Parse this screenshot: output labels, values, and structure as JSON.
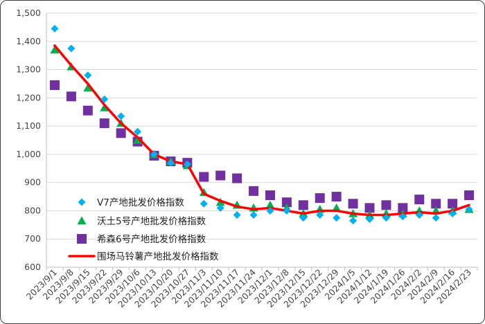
{
  "chart_data": {
    "type": "line",
    "title": "",
    "xlabel": "",
    "ylabel": "",
    "ylim": [
      600,
      1500
    ],
    "yticks": [
      "600",
      "700",
      "800",
      "900",
      "1,000",
      "1,100",
      "1,200",
      "1,300",
      "1,400",
      "1,500"
    ],
    "y_tick_values": [
      600,
      700,
      800,
      900,
      1000,
      1100,
      1200,
      1300,
      1400,
      1500
    ],
    "grid": "horizontal",
    "legend_position": "lower-left",
    "x": [
      "2023/9/1",
      "2023/9/8",
      "2023/9/15",
      "2023/9/22",
      "2023/9/29",
      "2023/10/6",
      "2023/10/13",
      "2023/10/20",
      "2023/10/27",
      "2023/11/3",
      "2023/11/10",
      "2023/11/17",
      "2023/11/24",
      "2023/12/1",
      "2023/12/8",
      "2023/12/15",
      "2023/12/22",
      "2023/12/29",
      "2024/1/5",
      "2024/1/12",
      "2024/1/19",
      "2024/1/26",
      "2024/2/2",
      "2024/2/9",
      "2024/2/16",
      "2024/2/23"
    ],
    "series": [
      {
        "name": "V7产地批发价格指数",
        "marker": "diamond",
        "color": "#00B0F0",
        "values": [
          1445,
          1375,
          1280,
          1195,
          1135,
          1080,
          1000,
          970,
          965,
          825,
          810,
          785,
          785,
          800,
          800,
          775,
          785,
          775,
          765,
          770,
          775,
          780,
          785,
          775,
          790,
          805
        ]
      },
      {
        "name": "沃土5号产地批发价格指数",
        "marker": "triangle",
        "color": "#00B050",
        "values": [
          1370,
          1310,
          1235,
          1165,
          1110,
          1050,
          1000,
          975,
          960,
          865,
          830,
          820,
          810,
          820,
          810,
          790,
          805,
          810,
          790,
          785,
          790,
          790,
          800,
          800,
          800,
          805
        ]
      },
      {
        "name": "希森6号产地批发价格指数",
        "marker": "square",
        "color": "#7030A0",
        "values": [
          1245,
          1205,
          1155,
          1110,
          1075,
          1045,
          995,
          975,
          970,
          920,
          925,
          915,
          870,
          855,
          830,
          820,
          845,
          850,
          825,
          810,
          820,
          810,
          840,
          825,
          825,
          855
        ]
      },
      {
        "name": "围场马铃薯产地批发价格指数",
        "marker": "line",
        "color": "#FF0000",
        "values": [
          1385,
          1315,
          1250,
          1175,
          1110,
          1060,
          1000,
          975,
          965,
          860,
          835,
          815,
          805,
          810,
          800,
          790,
          800,
          800,
          790,
          785,
          785,
          790,
          795,
          790,
          800,
          820
        ]
      }
    ]
  }
}
